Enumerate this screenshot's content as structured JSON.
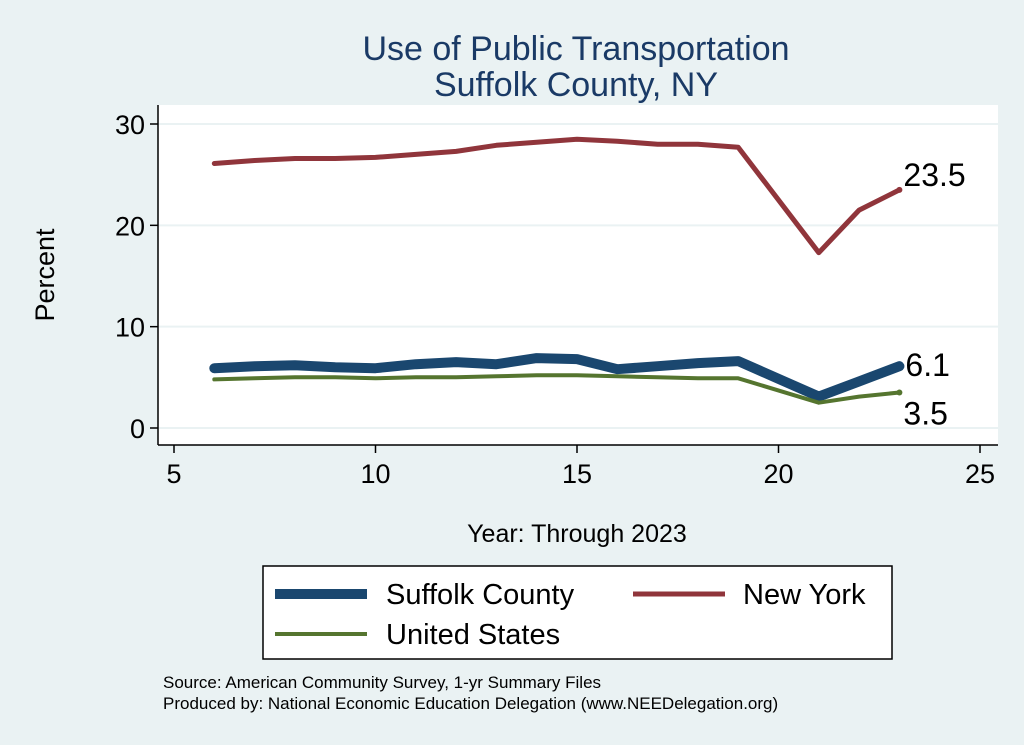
{
  "chart_data": {
    "type": "line",
    "title": "Use of Public Transportation",
    "subtitle": "Suffolk County, NY",
    "xlabel": "Year: Through 2023",
    "ylabel": "Percent",
    "xlim": [
      5,
      25
    ],
    "ylim": [
      0,
      30
    ],
    "x_ticks": [
      5,
      10,
      15,
      20,
      25
    ],
    "y_ticks": [
      0,
      10,
      20,
      30
    ],
    "grid": true,
    "x": [
      6,
      7,
      8,
      9,
      10,
      11,
      12,
      13,
      14,
      15,
      16,
      17,
      18,
      19,
      21,
      22,
      23
    ],
    "series": [
      {
        "name": "Suffolk County",
        "color": "#1a476f",
        "values": [
          5.9,
          6.1,
          6.2,
          6.0,
          5.9,
          6.3,
          6.5,
          6.3,
          6.9,
          6.8,
          5.8,
          6.1,
          6.4,
          6.6,
          3.1,
          4.6,
          6.1
        ],
        "end_label": "6.1"
      },
      {
        "name": "New York",
        "color": "#90353b",
        "values": [
          26.1,
          26.4,
          26.6,
          26.6,
          26.7,
          27.0,
          27.3,
          27.9,
          28.2,
          28.5,
          28.3,
          28.0,
          28.0,
          27.7,
          17.3,
          21.5,
          23.5
        ],
        "end_label": "23.5"
      },
      {
        "name": "United States",
        "color": "#55752f",
        "values": [
          4.8,
          4.9,
          5.0,
          5.0,
          4.9,
          5.0,
          5.0,
          5.1,
          5.2,
          5.2,
          5.1,
          5.0,
          4.9,
          4.9,
          2.5,
          3.1,
          3.5
        ],
        "end_label": "3.5"
      }
    ],
    "legend": {
      "position": "bottom",
      "entries": [
        "Suffolk County",
        "New York",
        "United States"
      ]
    }
  },
  "footer": {
    "source": "Source: American Community Survey, 1-yr Summary Files",
    "produced_by": "Produced by: National Economic Education Delegation (www.NEEDelegation.org)"
  }
}
